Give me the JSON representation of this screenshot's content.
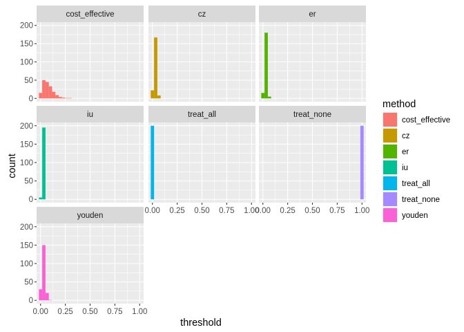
{
  "chart_data": {
    "type": "bar",
    "chart_kind": "faceted-histogram",
    "xlabel": "threshold",
    "ylabel": "count",
    "xlim": [
      -0.04,
      1.04
    ],
    "ylim": [
      -9,
      209
    ],
    "x_ticks": [
      0,
      0.25,
      0.5,
      0.75,
      1
    ],
    "x_tick_labels": [
      "0.00",
      "0.25",
      "0.50",
      "0.75",
      "1.00"
    ],
    "y_ticks": [
      0,
      50,
      100,
      150,
      200
    ],
    "y_tick_labels": [
      "0",
      "50",
      "100",
      "150",
      "200"
    ],
    "bin_width": 0.0333,
    "grid": true,
    "legend": {
      "title": "method",
      "position": "right",
      "entries": [
        {
          "label": "cost_effective",
          "color": "#F8766D"
        },
        {
          "label": "cz",
          "color": "#C49A00"
        },
        {
          "label": "er",
          "color": "#53B400"
        },
        {
          "label": "iu",
          "color": "#00C094"
        },
        {
          "label": "treat_all",
          "color": "#00B6EB"
        },
        {
          "label": "treat_none",
          "color": "#A58AFF"
        },
        {
          "label": "youden",
          "color": "#FB61D7"
        }
      ]
    },
    "facets": [
      {
        "name": "cost_effective",
        "color": "#F8766D",
        "bins": [
          {
            "x": 0.0,
            "count": 15
          },
          {
            "x": 0.0333,
            "count": 50
          },
          {
            "x": 0.0667,
            "count": 45
          },
          {
            "x": 0.1,
            "count": 33
          },
          {
            "x": 0.1333,
            "count": 18
          },
          {
            "x": 0.1667,
            "count": 9
          },
          {
            "x": 0.2,
            "count": 4
          },
          {
            "x": 0.2333,
            "count": 2
          },
          {
            "x": 0.2667,
            "count": 1
          },
          {
            "x": 0.3,
            "count": 1
          }
        ]
      },
      {
        "name": "cz",
        "color": "#C49A00",
        "bins": [
          {
            "x": 0.0,
            "count": 22
          },
          {
            "x": 0.0333,
            "count": 167
          },
          {
            "x": 0.0667,
            "count": 8
          }
        ]
      },
      {
        "name": "er",
        "color": "#53B400",
        "bins": [
          {
            "x": 0.0,
            "count": 15
          },
          {
            "x": 0.0333,
            "count": 180
          },
          {
            "x": 0.0667,
            "count": 5
          }
        ]
      },
      {
        "name": "iu",
        "color": "#00C094",
        "bins": [
          {
            "x": 0.0,
            "count": 5
          },
          {
            "x": 0.0333,
            "count": 195
          }
        ]
      },
      {
        "name": "treat_all",
        "color": "#00B6EB",
        "bins": [
          {
            "x": 0.0,
            "count": 200
          }
        ]
      },
      {
        "name": "treat_none",
        "color": "#A58AFF",
        "bins": [
          {
            "x": 1.0,
            "count": 200
          }
        ]
      },
      {
        "name": "youden",
        "color": "#FB61D7",
        "bins": [
          {
            "x": 0.0,
            "count": 30
          },
          {
            "x": 0.0333,
            "count": 150
          },
          {
            "x": 0.0667,
            "count": 20
          },
          {
            "x": 0.1,
            "count": 1
          }
        ]
      }
    ]
  }
}
